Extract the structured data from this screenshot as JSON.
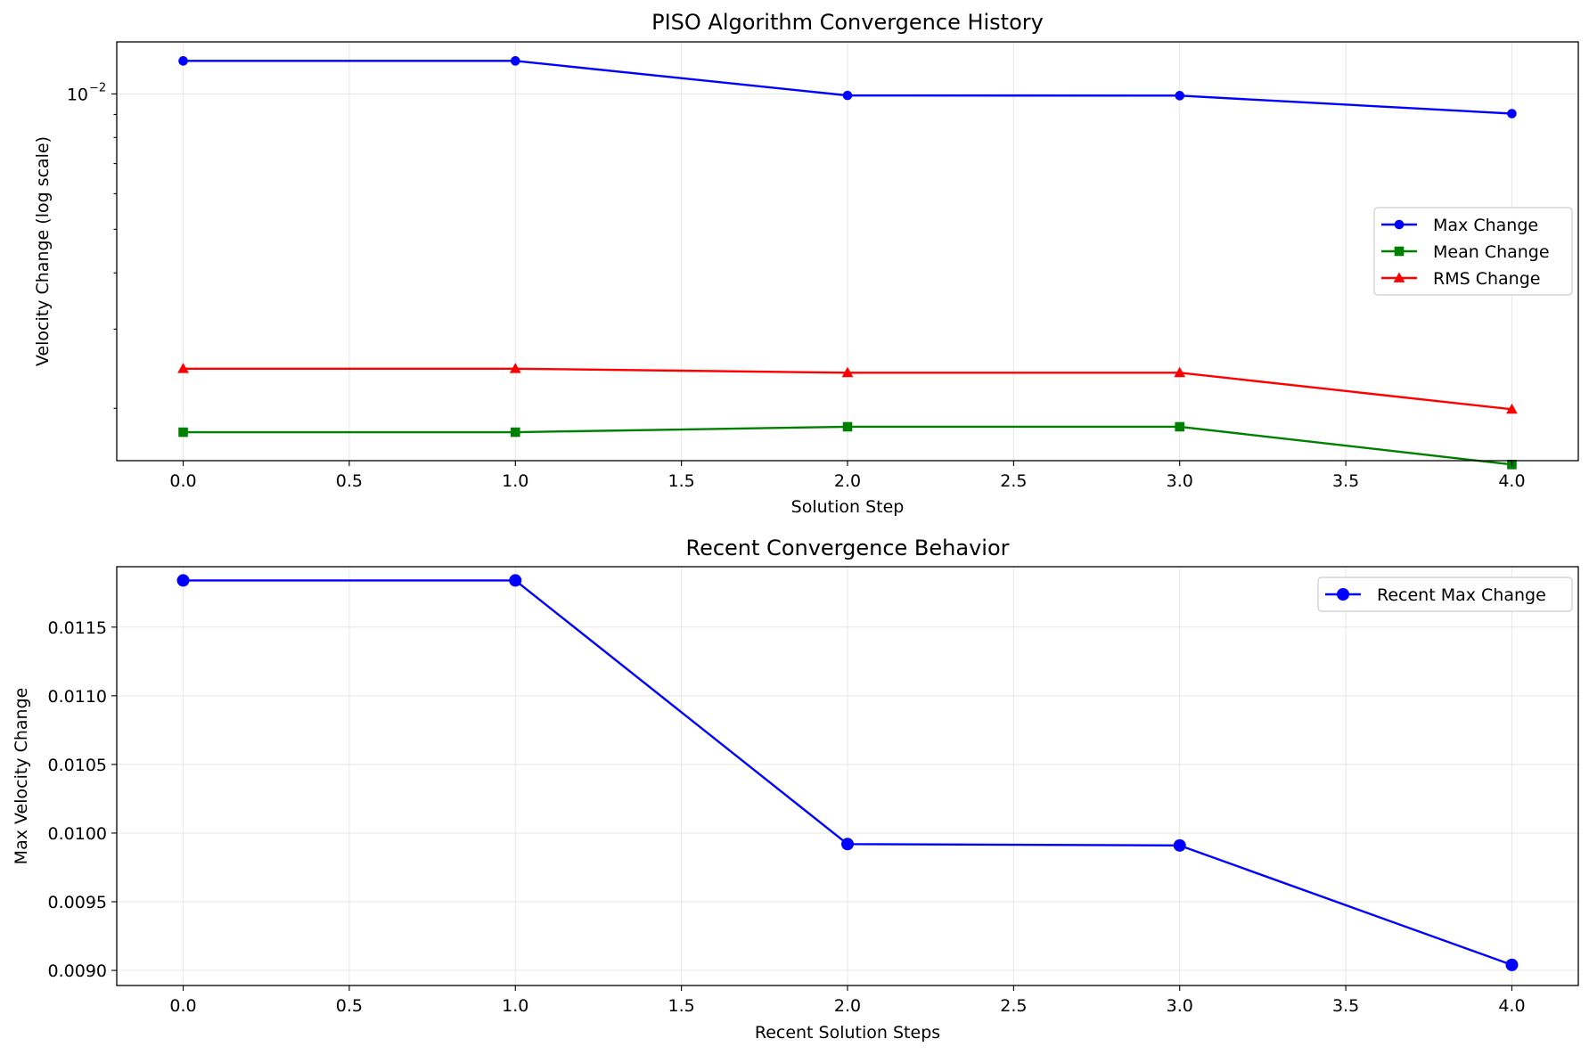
{
  "chart_data": [
    {
      "type": "line",
      "title": "PISO Algorithm Convergence History",
      "xlabel": "Solution Step",
      "ylabel": "Velocity Change (log scale)",
      "yscale": "log",
      "x": [
        0,
        1,
        2,
        3,
        4
      ],
      "xlim": [
        -0.2,
        4.2
      ],
      "ylim": [
        0.00153,
        0.01305
      ],
      "xticks": [
        0.0,
        0.5,
        1.0,
        1.5,
        2.0,
        2.5,
        3.0,
        3.5,
        4.0
      ],
      "xtick_labels": [
        "0.0",
        "0.5",
        "1.0",
        "1.5",
        "2.0",
        "2.5",
        "3.0",
        "3.5",
        "4.0"
      ],
      "ytick_major_label": "10",
      "ytick_major_exp": "−2",
      "ytick_major_value": 0.01,
      "yticks_minor": [
        0.002,
        0.003,
        0.004,
        0.005,
        0.006,
        0.007,
        0.008,
        0.009
      ],
      "grid": true,
      "legend_position": "center-right",
      "series": [
        {
          "name": "Max Change",
          "color": "#0000ff",
          "marker": "circle",
          "values": [
            0.01184,
            0.01184,
            0.00992,
            0.00991,
            0.00904
          ]
        },
        {
          "name": "Mean Change",
          "color": "#008000",
          "marker": "square",
          "values": [
            0.00177,
            0.00177,
            0.00182,
            0.00182,
            0.0015
          ]
        },
        {
          "name": "RMS Change",
          "color": "#ff0000",
          "marker": "triangle",
          "values": [
            0.00245,
            0.00245,
            0.0024,
            0.0024,
            0.00199
          ]
        }
      ]
    },
    {
      "type": "line",
      "title": "Recent Convergence Behavior",
      "xlabel": "Recent Solution Steps",
      "ylabel": "Max Velocity Change",
      "x": [
        0,
        1,
        2,
        3,
        4
      ],
      "xlim": [
        -0.2,
        4.2
      ],
      "ylim": [
        0.00889,
        0.01194
      ],
      "xticks": [
        0.0,
        0.5,
        1.0,
        1.5,
        2.0,
        2.5,
        3.0,
        3.5,
        4.0
      ],
      "xtick_labels": [
        "0.0",
        "0.5",
        "1.0",
        "1.5",
        "2.0",
        "2.5",
        "3.0",
        "3.5",
        "4.0"
      ],
      "yticks": [
        0.009,
        0.0095,
        0.01,
        0.0105,
        0.011,
        0.0115
      ],
      "ytick_labels": [
        "0.0090",
        "0.0095",
        "0.0100",
        "0.0105",
        "0.0110",
        "0.0115"
      ],
      "grid": true,
      "legend_position": "top-right",
      "series": [
        {
          "name": "Recent Max Change",
          "color": "#0000ff",
          "marker": "circle",
          "values": [
            0.01184,
            0.01184,
            0.00992,
            0.00991,
            0.00904
          ]
        }
      ]
    }
  ]
}
